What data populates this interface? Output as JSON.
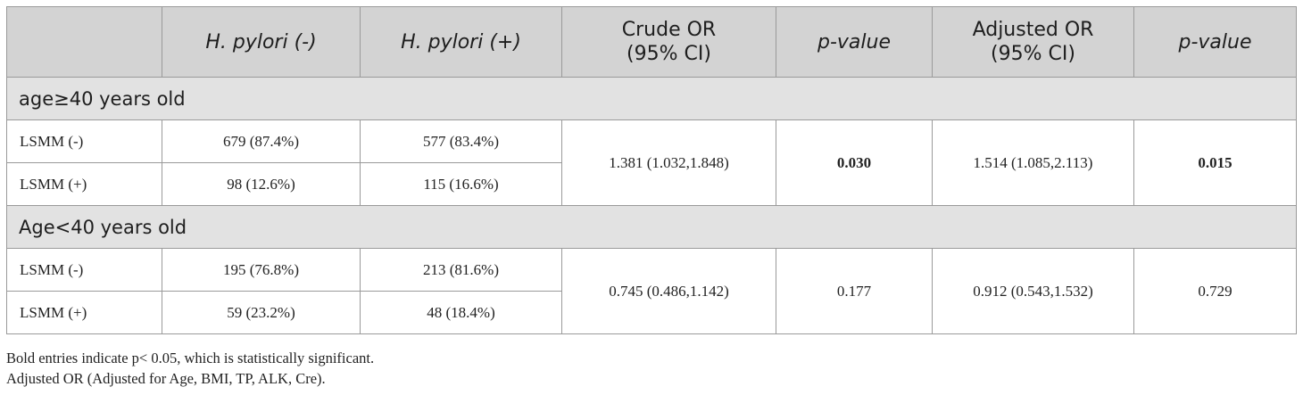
{
  "table": {
    "headers": [
      {
        "text": "",
        "italic": false
      },
      {
        "text": "H. pylori (-)",
        "italic": true
      },
      {
        "text": "H. pylori (+)",
        "italic": true
      },
      {
        "text": "Crude OR\n(95% CI)",
        "italic": false
      },
      {
        "text": "p-value",
        "italic": true
      },
      {
        "text": "Adjusted OR\n(95% CI)",
        "italic": false
      },
      {
        "text": "p-value",
        "italic": true
      }
    ],
    "header_lines": {
      "crude_1": "Crude OR",
      "crude_2": "(95% CI)",
      "adj_1": "Adjusted OR",
      "adj_2": "(95% CI)"
    },
    "groups": [
      {
        "label": "age≥40 years old",
        "rows": [
          {
            "label": "LSMM (-)",
            "hp_neg": "679 (87.4%)",
            "hp_pos": "577 (83.4%)"
          },
          {
            "label": "LSMM (+)",
            "hp_neg": "98 (12.6%)",
            "hp_pos": "115 (16.6%)"
          }
        ],
        "crude_or": "1.381 (1.032,1.848)",
        "crude_p": "0.030",
        "crude_p_bold": true,
        "adj_or": "1.514 (1.085,2.113)",
        "adj_p": "0.015",
        "adj_p_bold": true
      },
      {
        "label": "Age<40 years old",
        "rows": [
          {
            "label": "LSMM (-)",
            "hp_neg": "195 (76.8%)",
            "hp_pos": "213 (81.6%)"
          },
          {
            "label": "LSMM (+)",
            "hp_neg": "59 (23.2%)",
            "hp_pos": "48 (18.4%)"
          }
        ],
        "crude_or": "0.745 (0.486,1.142)",
        "crude_p": "0.177",
        "crude_p_bold": false,
        "adj_or": "0.912 (0.543,1.532)",
        "adj_p": "0.729",
        "adj_p_bold": false
      }
    ]
  },
  "footnotes": [
    "Bold entries indicate p< 0.05, which is statistically significant.",
    "Adjusted OR (Adjusted for Age, BMI, TP, ALK, Cre)."
  ]
}
